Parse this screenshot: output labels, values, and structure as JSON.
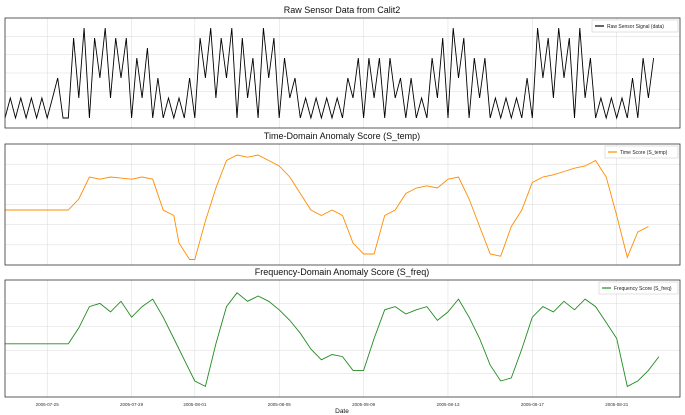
{
  "colors": {
    "raw": "#000000",
    "temp": "#ff8c00",
    "freq": "#228b22",
    "grid": "#d9d9d9",
    "frame": "#333333"
  },
  "x_axis": {
    "label": "Date",
    "ticks": [
      "2005-07-25",
      "2005-07-29",
      "2005-08-01",
      "2005-08-05",
      "2005-08-09",
      "2005-08-13",
      "2005-08-17",
      "2005-08-21"
    ],
    "range": [
      "2005-07-23",
      "2005-08-24"
    ]
  },
  "chart_data": [
    {
      "type": "line",
      "title": "Raw Sensor Data from Calit2",
      "legend": "top-right",
      "grid": true,
      "ylim": [
        -0.5,
        5
      ],
      "series": [
        {
          "name": "Raw Sensor Signal (data)",
          "color": "#000000",
          "x": [
            "2005-07-23",
            "2005-07-23T06",
            "2005-07-23T12",
            "2005-07-23T18",
            "2005-07-24",
            "2005-07-24T06",
            "2005-07-24T12",
            "2005-07-24T18",
            "2005-07-25",
            "2005-07-25T06",
            "2005-07-25T12",
            "2005-07-25T18",
            "2005-07-26",
            "2005-07-26T06",
            "2005-07-26T12",
            "2005-07-26T18",
            "2005-07-27",
            "2005-07-27T06",
            "2005-07-27T12",
            "2005-07-27T18",
            "2005-07-28",
            "2005-07-28T06",
            "2005-07-28T12",
            "2005-07-28T18",
            "2005-07-29",
            "2005-07-29T06",
            "2005-07-29T12",
            "2005-07-29T18",
            "2005-07-30",
            "2005-07-30T06",
            "2005-07-30T12",
            "2005-07-30T18",
            "2005-07-31",
            "2005-07-31T06",
            "2005-07-31T12",
            "2005-07-31T18",
            "2005-08-01",
            "2005-08-01T06",
            "2005-08-01T12",
            "2005-08-01T18",
            "2005-08-02",
            "2005-08-02T06",
            "2005-08-02T12",
            "2005-08-02T18",
            "2005-08-03",
            "2005-08-03T06",
            "2005-08-03T12",
            "2005-08-03T18",
            "2005-08-04",
            "2005-08-04T06",
            "2005-08-04T12",
            "2005-08-04T18",
            "2005-08-05",
            "2005-08-05T06",
            "2005-08-05T12",
            "2005-08-05T18",
            "2005-08-06",
            "2005-08-06T06",
            "2005-08-06T12",
            "2005-08-06T18",
            "2005-08-07",
            "2005-08-07T06",
            "2005-08-07T12",
            "2005-08-07T18",
            "2005-08-08",
            "2005-08-08T06",
            "2005-08-08T12",
            "2005-08-08T18",
            "2005-08-09",
            "2005-08-09T06",
            "2005-08-09T12",
            "2005-08-09T18",
            "2005-08-10",
            "2005-08-10T06",
            "2005-08-10T12",
            "2005-08-10T18",
            "2005-08-11",
            "2005-08-11T06",
            "2005-08-11T12",
            "2005-08-11T18",
            "2005-08-12",
            "2005-08-12T06",
            "2005-08-12T12",
            "2005-08-12T18",
            "2005-08-13",
            "2005-08-13T06",
            "2005-08-13T12",
            "2005-08-13T18",
            "2005-08-14",
            "2005-08-14T06",
            "2005-08-14T12",
            "2005-08-14T18",
            "2005-08-15",
            "2005-08-15T06",
            "2005-08-15T12",
            "2005-08-15T18",
            "2005-08-16",
            "2005-08-16T06",
            "2005-08-16T12",
            "2005-08-16T18",
            "2005-08-17",
            "2005-08-17T06",
            "2005-08-17T12",
            "2005-08-17T18",
            "2005-08-18",
            "2005-08-18T06",
            "2005-08-18T12",
            "2005-08-18T18",
            "2005-08-19",
            "2005-08-19T06",
            "2005-08-19T12",
            "2005-08-19T18",
            "2005-08-20",
            "2005-08-20T06",
            "2005-08-20T12",
            "2005-08-20T18",
            "2005-08-21",
            "2005-08-21T06",
            "2005-08-21T12",
            "2005-08-21T18",
            "2005-08-22",
            "2005-08-22T06",
            "2005-08-22T12",
            "2005-08-22T18"
          ],
          "values": [
            0,
            1,
            0,
            1,
            0,
            1,
            0,
            1,
            0,
            1,
            2,
            0,
            0,
            4,
            1,
            4.5,
            0,
            4,
            2,
            4.5,
            1,
            4,
            2,
            4,
            0,
            3,
            1,
            3.5,
            0,
            2,
            0,
            1,
            0,
            1,
            0,
            2,
            0,
            4,
            2,
            4.5,
            1,
            4,
            2,
            4.5,
            0,
            4,
            1,
            3,
            0,
            4.5,
            2,
            4,
            0,
            3,
            1,
            2,
            0,
            1,
            0,
            1,
            0,
            1,
            0,
            1,
            0,
            2,
            1,
            3,
            0,
            3,
            1,
            3,
            0,
            3,
            1,
            2,
            0,
            2,
            0,
            1,
            0,
            3,
            1,
            4,
            0,
            4.5,
            2,
            4,
            0,
            3,
            1,
            3,
            0,
            1,
            0,
            1,
            0,
            1,
            0,
            2,
            0,
            4.5,
            2,
            4,
            1,
            4.5,
            2,
            4,
            0,
            4.5,
            1,
            3,
            0,
            1,
            0,
            1,
            0,
            1,
            0,
            2,
            0,
            3,
            1,
            3
          ]
        }
      ]
    },
    {
      "type": "line",
      "title": "Time-Domain Anomaly Score (S_temp)",
      "legend": "top-right",
      "grid": true,
      "ylim": [
        0,
        1.1
      ],
      "series": [
        {
          "name": "Time Score (S_temp)",
          "color": "#ff8c00",
          "x": [
            "2005-07-23",
            "2005-07-24",
            "2005-07-25",
            "2005-07-26",
            "2005-07-26T12",
            "2005-07-27",
            "2005-07-27T12",
            "2005-07-28",
            "2005-07-28T12",
            "2005-07-29",
            "2005-07-29T12",
            "2005-07-30",
            "2005-07-30T12",
            "2005-07-31",
            "2005-07-31T06",
            "2005-07-31T18",
            "2005-08-01",
            "2005-08-01T12",
            "2005-08-02",
            "2005-08-02T12",
            "2005-08-03",
            "2005-08-03T12",
            "2005-08-04",
            "2005-08-04T12",
            "2005-08-05",
            "2005-08-05T12",
            "2005-08-06",
            "2005-08-06T12",
            "2005-08-07",
            "2005-08-07T12",
            "2005-08-08",
            "2005-08-08T12",
            "2005-08-09",
            "2005-08-09T12",
            "2005-08-10",
            "2005-08-10T12",
            "2005-08-11",
            "2005-08-11T12",
            "2005-08-12",
            "2005-08-12T12",
            "2005-08-13",
            "2005-08-13T12",
            "2005-08-14",
            "2005-08-14T12",
            "2005-08-15",
            "2005-08-15T12",
            "2005-08-16",
            "2005-08-16T12",
            "2005-08-17",
            "2005-08-17T12",
            "2005-08-18",
            "2005-08-18T12",
            "2005-08-19",
            "2005-08-19T12",
            "2005-08-20",
            "2005-08-20T12",
            "2005-08-21",
            "2005-08-21T12",
            "2005-08-22",
            "2005-08-22T12"
          ],
          "values": [
            0.5,
            0.5,
            0.5,
            0.5,
            0.6,
            0.8,
            0.78,
            0.8,
            0.79,
            0.78,
            0.8,
            0.78,
            0.5,
            0.45,
            0.2,
            0.05,
            0.05,
            0.4,
            0.7,
            0.95,
            1.0,
            0.98,
            1.0,
            0.95,
            0.9,
            0.8,
            0.65,
            0.5,
            0.45,
            0.5,
            0.45,
            0.2,
            0.1,
            0.1,
            0.45,
            0.5,
            0.65,
            0.7,
            0.72,
            0.7,
            0.78,
            0.8,
            0.6,
            0.35,
            0.1,
            0.08,
            0.35,
            0.5,
            0.75,
            0.8,
            0.82,
            0.85,
            0.88,
            0.9,
            0.95,
            0.8,
            0.45,
            0.07,
            0.3,
            0.35
          ]
        }
      ]
    },
    {
      "type": "line",
      "title": "Frequency-Domain Anomaly Score (S_freq)",
      "xlabel": "Date",
      "legend": "top-right",
      "grid": true,
      "ylim": [
        0,
        1.1
      ],
      "series": [
        {
          "name": "Frequency Score (S_freq)",
          "color": "#228b22",
          "x": [
            "2005-07-23",
            "2005-07-24",
            "2005-07-25",
            "2005-07-26",
            "2005-07-26T12",
            "2005-07-27",
            "2005-07-27T12",
            "2005-07-28",
            "2005-07-28T12",
            "2005-07-29",
            "2005-07-29T12",
            "2005-07-30",
            "2005-07-30T12",
            "2005-07-31",
            "2005-07-31T12",
            "2005-08-01",
            "2005-08-01T12",
            "2005-08-02",
            "2005-08-02T12",
            "2005-08-03",
            "2005-08-03T12",
            "2005-08-04",
            "2005-08-04T12",
            "2005-08-05",
            "2005-08-05T12",
            "2005-08-06",
            "2005-08-06T12",
            "2005-08-07",
            "2005-08-07T12",
            "2005-08-08",
            "2005-08-08T12",
            "2005-08-09",
            "2005-08-09T12",
            "2005-08-10",
            "2005-08-10T12",
            "2005-08-11",
            "2005-08-11T12",
            "2005-08-12",
            "2005-08-12T12",
            "2005-08-13",
            "2005-08-13T12",
            "2005-08-14",
            "2005-08-14T12",
            "2005-08-15",
            "2005-08-15T12",
            "2005-08-16",
            "2005-08-16T12",
            "2005-08-17",
            "2005-08-17T12",
            "2005-08-18",
            "2005-08-18T12",
            "2005-08-19",
            "2005-08-19T12",
            "2005-08-20",
            "2005-08-20T12",
            "2005-08-21",
            "2005-08-21T12",
            "2005-08-22",
            "2005-08-22T12",
            "2005-08-23"
          ],
          "values": [
            0.5,
            0.5,
            0.5,
            0.5,
            0.65,
            0.85,
            0.88,
            0.8,
            0.9,
            0.75,
            0.85,
            0.92,
            0.75,
            0.55,
            0.35,
            0.15,
            0.1,
            0.5,
            0.85,
            0.98,
            0.9,
            0.95,
            0.9,
            0.82,
            0.72,
            0.6,
            0.45,
            0.35,
            0.4,
            0.38,
            0.25,
            0.25,
            0.55,
            0.82,
            0.85,
            0.78,
            0.82,
            0.85,
            0.72,
            0.8,
            0.92,
            0.75,
            0.55,
            0.3,
            0.15,
            0.18,
            0.45,
            0.75,
            0.85,
            0.8,
            0.9,
            0.82,
            0.92,
            0.85,
            0.7,
            0.55,
            0.1,
            0.15,
            0.25,
            0.38
          ]
        }
      ]
    }
  ]
}
